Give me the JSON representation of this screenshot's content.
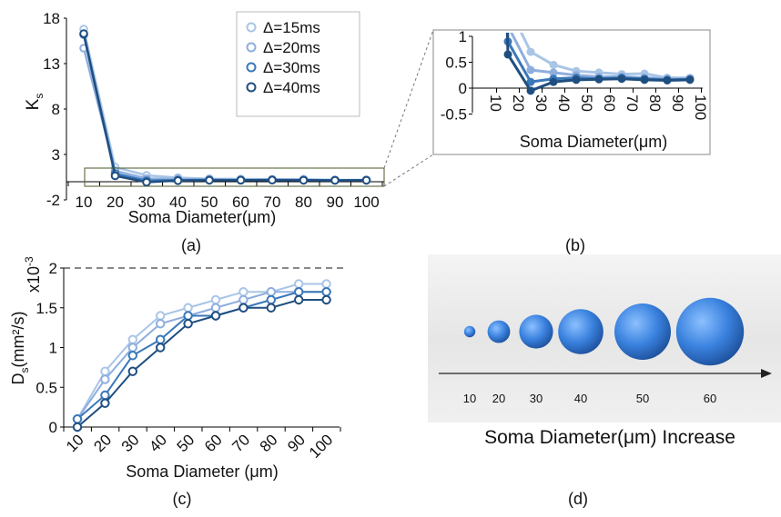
{
  "colors": {
    "s15": "#a9c5e6",
    "s20": "#8eaede",
    "s30": "#3a78b8",
    "s40": "#1f4e80",
    "sphere": "#3d86e0"
  },
  "chart_data": [
    {
      "id": "a",
      "type": "line",
      "panel_label": "(a)",
      "xlabel": "Soma Diameter(μm)",
      "ylabel": "K",
      "ylabel_sub": "s",
      "x": [
        10,
        20,
        30,
        40,
        50,
        60,
        70,
        80,
        90,
        100
      ],
      "ylim": [
        -2,
        18
      ],
      "yticks": [
        "-2",
        "3",
        "8",
        "13",
        "18"
      ],
      "ytick_values": [
        -2,
        3,
        8,
        13,
        18
      ],
      "legend": "top-right",
      "series": [
        {
          "name": "Δ=15ms",
          "values": [
            16.8,
            1.6,
            0.7,
            0.45,
            0.33,
            0.3,
            0.27,
            0.28,
            0.2,
            0.2
          ]
        },
        {
          "name": "Δ=20ms",
          "values": [
            14.7,
            1.2,
            0.35,
            0.3,
            0.25,
            0.22,
            0.22,
            0.2,
            0.18,
            0.18
          ]
        },
        {
          "name": "Δ=30ms",
          "values": [
            16.2,
            0.9,
            0.12,
            0.18,
            0.2,
            0.18,
            0.2,
            0.18,
            0.16,
            0.17
          ]
        },
        {
          "name": "Δ=40ms",
          "values": [
            16.3,
            0.65,
            -0.05,
            0.12,
            0.16,
            0.17,
            0.18,
            0.16,
            0.15,
            0.16
          ]
        }
      ]
    },
    {
      "id": "b",
      "type": "line",
      "panel_label": "(b)",
      "xlabel": "Soma Diameter(μm)",
      "ylim": [
        -0.5,
        1
      ],
      "yticks": [
        "-0.5",
        "0",
        "0.5",
        "1"
      ],
      "ytick_values": [
        -0.5,
        0,
        0.5,
        1
      ]
    },
    {
      "id": "c",
      "type": "line",
      "panel_label": "(c)",
      "xlabel": "Soma Diameter (μm)",
      "ylabel": "D",
      "ylabel_sub": "s",
      "ylabel_rest": "(mm²/s)",
      "scale_note": "x10",
      "scale_exp": "-3",
      "x": [
        10,
        20,
        30,
        40,
        50,
        60,
        70,
        80,
        90,
        100
      ],
      "ylim": [
        0,
        2
      ],
      "yticks": [
        "0",
        "0.5",
        "1",
        "1.5",
        "2"
      ],
      "ytick_values": [
        0,
        0.5,
        1,
        1.5,
        2
      ],
      "reference_line": 2,
      "series": [
        {
          "name": "Δ=15ms",
          "values": [
            0.1,
            0.7,
            1.1,
            1.4,
            1.5,
            1.6,
            1.7,
            1.7,
            1.8,
            1.8
          ]
        },
        {
          "name": "Δ=20ms",
          "values": [
            0.1,
            0.6,
            1.0,
            1.3,
            1.4,
            1.5,
            1.6,
            1.7,
            1.7,
            1.7
          ]
        },
        {
          "name": "Δ=30ms",
          "values": [
            0.1,
            0.4,
            0.9,
            1.1,
            1.4,
            1.4,
            1.5,
            1.6,
            1.7,
            1.7
          ]
        },
        {
          "name": "Δ=40ms",
          "values": [
            0.0,
            0.3,
            0.7,
            1.0,
            1.3,
            1.4,
            1.5,
            1.5,
            1.6,
            1.6
          ]
        }
      ]
    },
    {
      "id": "d",
      "type": "diagram",
      "panel_label": "(d)",
      "title": "Soma Diameter(μm) Increase",
      "diameters": [
        10,
        20,
        30,
        40,
        50,
        60
      ],
      "labels": [
        "10",
        "20",
        "30",
        "40",
        "50",
        "60"
      ]
    }
  ]
}
